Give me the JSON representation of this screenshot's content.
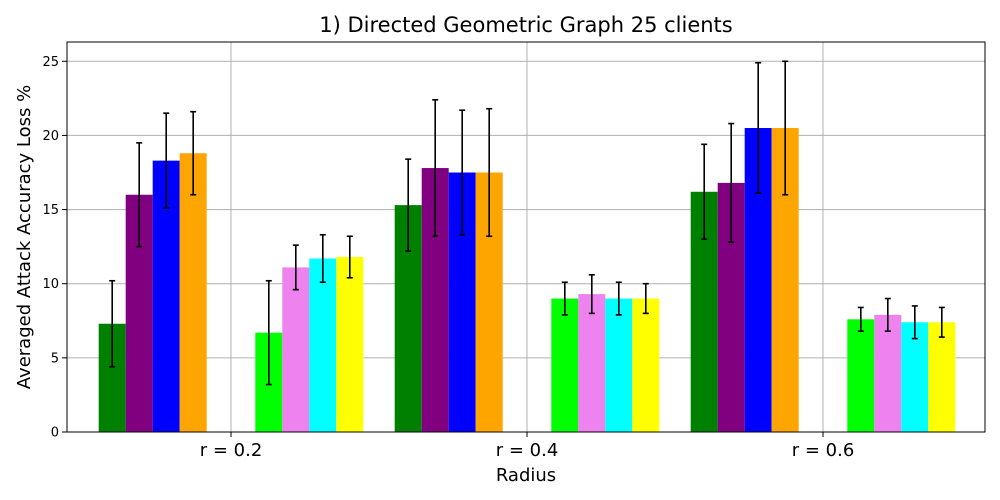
{
  "chart_data": {
    "type": "bar",
    "title": "1) Directed Geometric Graph 25 clients",
    "xlabel": "Radius",
    "ylabel": "Averaged Attack Accuracy Loss %",
    "categories": [
      "r = 0.2",
      "r = 0.4",
      "r = 0.6"
    ],
    "ylim": [
      0,
      26.3
    ],
    "yticks": [
      0,
      5,
      10,
      15,
      20,
      25
    ],
    "grid": true,
    "legend": "none",
    "group_gap_after_index": 3,
    "series": [
      {
        "color": "#008000",
        "values": [
          7.3,
          15.3,
          16.2
        ],
        "errors": [
          2.9,
          3.1,
          3.2
        ]
      },
      {
        "color": "#800080",
        "values": [
          16.0,
          17.8,
          16.8
        ],
        "errors": [
          3.5,
          4.6,
          4.0
        ]
      },
      {
        "color": "#0000ff",
        "values": [
          18.3,
          17.5,
          20.5
        ],
        "errors": [
          3.2,
          4.2,
          4.4
        ]
      },
      {
        "color": "#ffa500",
        "values": [
          18.8,
          17.5,
          20.5
        ],
        "errors": [
          2.8,
          4.3,
          4.5
        ]
      },
      {
        "color": "#00ff00",
        "values": [
          6.7,
          9.0,
          7.6
        ],
        "errors": [
          3.5,
          1.1,
          0.8
        ]
      },
      {
        "color": "#ee82ee",
        "values": [
          11.1,
          9.3,
          7.9
        ],
        "errors": [
          1.5,
          1.3,
          1.1
        ]
      },
      {
        "color": "#00ffff",
        "values": [
          11.7,
          9.0,
          7.4
        ],
        "errors": [
          1.6,
          1.1,
          1.1
        ]
      },
      {
        "color": "#ffff00",
        "values": [
          11.8,
          9.0,
          7.4
        ],
        "errors": [
          1.4,
          1.0,
          1.0
        ]
      }
    ]
  }
}
